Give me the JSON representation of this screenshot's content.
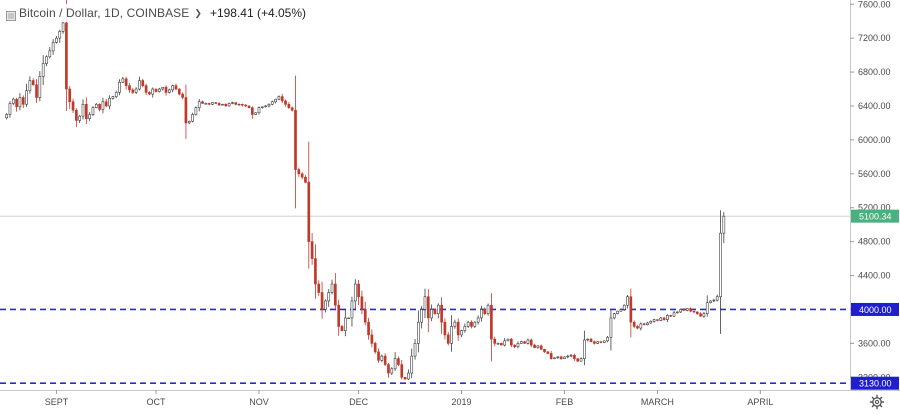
{
  "legend": {
    "title": "Bitcoin / Dollar, 1D, COINBASE",
    "change": "+198.41 (+4.05%)"
  },
  "colors": {
    "up": "#3d3d3d",
    "down": "#c0392b",
    "hline": "#2a2ad8",
    "last_badge": "#4caf7f",
    "hline_badge": "#1f1fcf"
  },
  "chart_data": {
    "type": "candlestick",
    "title": "Bitcoin / Dollar, 1D, COINBASE",
    "ylim": [
      3050,
      7650
    ],
    "yticks": [
      3200,
      3600,
      4000,
      4400,
      4800,
      5200,
      5600,
      6000,
      6400,
      6800,
      7200,
      7600
    ],
    "ytick_labels": [
      "3200.00",
      "3600.00",
      "4000.00",
      "4400.00",
      "4800.00",
      "5200.00",
      "5600.00",
      "6000.00",
      "6400.00",
      "6800.00",
      "7200.00",
      "7600.00"
    ],
    "start_date": "2018-08-17",
    "end_date": "2019-04-02",
    "x_range": [
      "2018-08-15",
      "2019-04-28"
    ],
    "xticks": [
      {
        "date": "2018-09-01",
        "label": "SEPT"
      },
      {
        "date": "2018-10-01",
        "label": "OCT"
      },
      {
        "date": "2018-11-01",
        "label": "NOV"
      },
      {
        "date": "2018-12-01",
        "label": "DEC"
      },
      {
        "date": "2019-01-01",
        "label": "2019"
      },
      {
        "date": "2019-02-01",
        "label": "FEB"
      },
      {
        "date": "2019-03-01",
        "label": "MARCH"
      },
      {
        "date": "2019-04-01",
        "label": "APRIL"
      }
    ],
    "close": [
      6300,
      6430,
      6480,
      6390,
      6500,
      6420,
      6580,
      6700,
      6650,
      6500,
      6750,
      6900,
      6980,
      7050,
      7150,
      7200,
      7280,
      7380,
      6600,
      6450,
      6350,
      6230,
      6280,
      6420,
      6250,
      6300,
      6380,
      6420,
      6360,
      6450,
      6400,
      6490,
      6510,
      6560,
      6680,
      6720,
      6640,
      6590,
      6560,
      6600,
      6700,
      6640,
      6560,
      6540,
      6600,
      6570,
      6600,
      6620,
      6560,
      6590,
      6640,
      6600,
      6540,
      6500,
      6200,
      6220,
      6300,
      6380,
      6450,
      6430,
      6430,
      6420,
      6440,
      6430,
      6410,
      6420,
      6400,
      6430,
      6440,
      6420,
      6420,
      6410,
      6400,
      6380,
      6300,
      6320,
      6380,
      6390,
      6400,
      6420,
      6450,
      6480,
      6510,
      6460,
      6420,
      6380,
      6350,
      5650,
      5600,
      5560,
      5500,
      4800,
      4600,
      4300,
      4200,
      4000,
      4100,
      4200,
      4300,
      4050,
      3800,
      3750,
      3900,
      3900,
      4100,
      4300,
      4150,
      4000,
      3850,
      3700,
      3600,
      3500,
      3400,
      3450,
      3350,
      3250,
      3300,
      3420,
      3350,
      3200,
      3180,
      3250,
      3450,
      3600,
      3850,
      4000,
      4150,
      3900,
      4000,
      3950,
      4050,
      3850,
      3700,
      3600,
      3800,
      3850,
      3700,
      3750,
      3800,
      3850,
      3800,
      3850,
      3900,
      4000,
      3950,
      4050,
      3650,
      3600,
      3600,
      3580,
      3630,
      3650,
      3580,
      3560,
      3600,
      3620,
      3600,
      3640,
      3580,
      3550,
      3570,
      3530,
      3500,
      3480,
      3420,
      3430,
      3440,
      3420,
      3440,
      3450,
      3460,
      3420,
      3390,
      3420,
      3640,
      3650,
      3620,
      3600,
      3620,
      3610,
      3630,
      3670,
      3900,
      3950,
      3980,
      4000,
      4050,
      4150,
      3850,
      3800,
      3780,
      3830,
      3820,
      3840,
      3860,
      3880,
      3870,
      3900,
      3880,
      3930,
      3920,
      3960,
      3970,
      4000,
      3990,
      4010,
      3980,
      3970,
      3950,
      3920,
      3950,
      4080,
      4100,
      4110,
      4150,
      4900,
      5100
    ]
  },
  "hlines": [
    {
      "value": 4000,
      "label": "4000.00"
    },
    {
      "value": 3130,
      "label": "3130.00"
    }
  ],
  "last_price": {
    "value": 5100.34,
    "label": "5100.34"
  }
}
